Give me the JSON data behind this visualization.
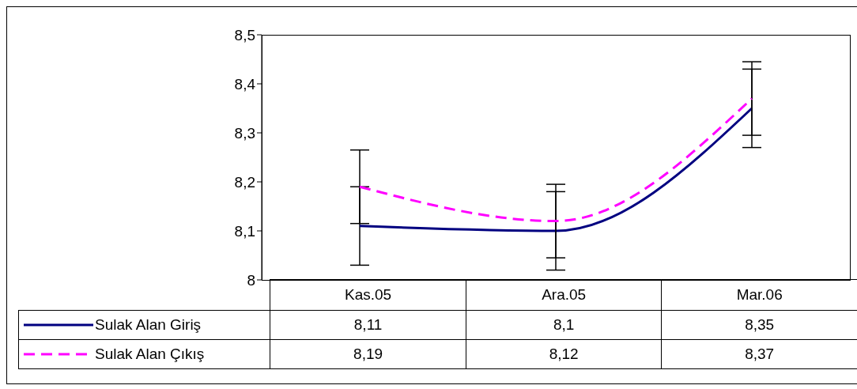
{
  "chart_data": {
    "type": "line",
    "categories": [
      "Kas.05",
      "Ara.05",
      "Mar.06"
    ],
    "series": [
      {
        "name": "Sulak Alan Giriş",
        "color": "#000080",
        "values": [
          8.11,
          8.1,
          8.35
        ],
        "value_labels": [
          "8,11",
          "8,1",
          "8,35"
        ],
        "errors": [
          0.08,
          0.08,
          0.08
        ],
        "line_style": "solid"
      },
      {
        "name": "Sulak Alan Çıkış",
        "color": "#ff00ff",
        "values": [
          8.19,
          8.12,
          8.37
        ],
        "value_labels": [
          "8,19",
          "8,12",
          "8,37"
        ],
        "errors": [
          0.075,
          0.075,
          0.075
        ],
        "line_style": "dashed"
      }
    ],
    "ylim": [
      8,
      8.5
    ],
    "yticks": [
      8,
      {
        "value": 8.1,
        "label": "8,1"
      },
      {
        "value": 8.2,
        "label": "8,2"
      },
      {
        "value": 8.3,
        "label": "8,3"
      },
      {
        "value": 8.4,
        "label": "8,4"
      },
      {
        "value": 8.5,
        "label": "8,5"
      }
    ],
    "grid": false,
    "legend": "bottom",
    "marker": "none"
  }
}
